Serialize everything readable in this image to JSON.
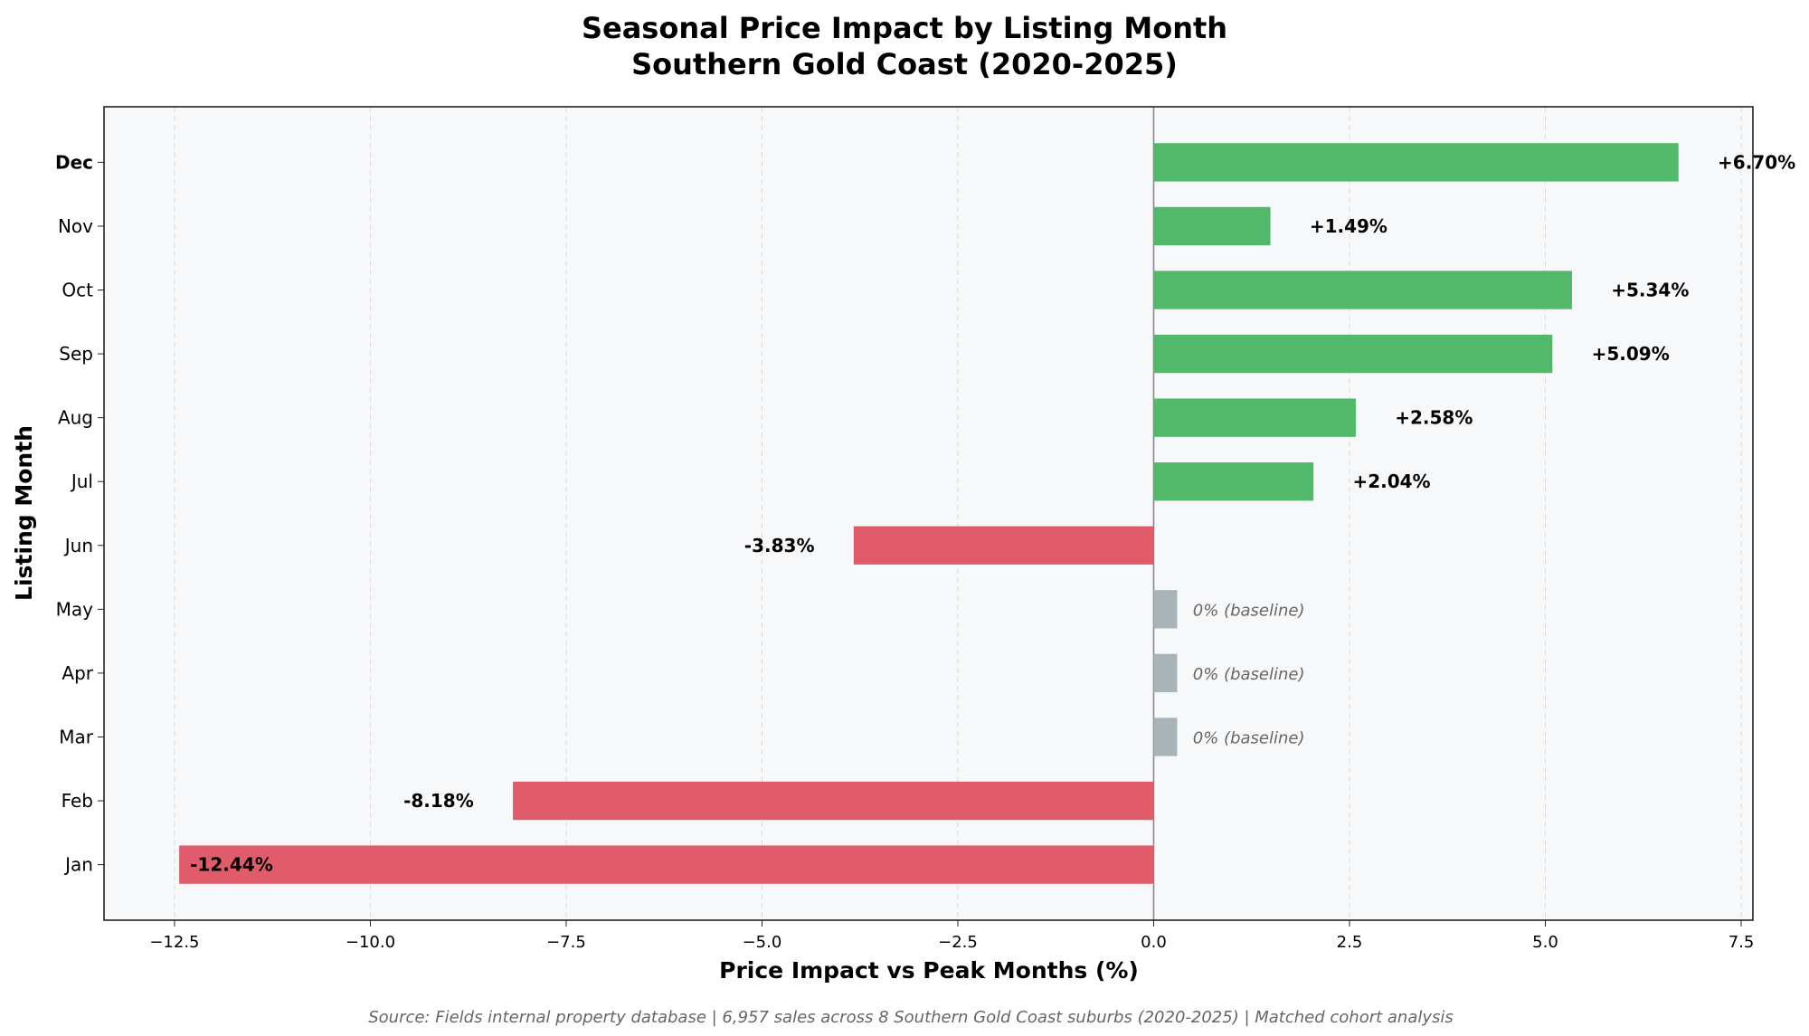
{
  "chart_data": {
    "type": "bar",
    "orientation": "horizontal",
    "title": "Seasonal Price Impact by Listing Month",
    "subtitle": "Southern Gold Coast (2020-2025)",
    "xlabel": "Price Impact vs Peak Months (%)",
    "ylabel": "Listing Month",
    "categories": [
      "Jan",
      "Feb",
      "Mar",
      "Apr",
      "May",
      "Jun",
      "Jul",
      "Aug",
      "Sep",
      "Oct",
      "Nov",
      "Dec"
    ],
    "values": [
      -12.44,
      -8.18,
      0,
      0,
      0,
      -3.83,
      2.04,
      2.58,
      5.09,
      5.34,
      1.49,
      6.7
    ],
    "data_labels": [
      "-12.44%",
      "-8.18%",
      "0% (baseline)",
      "0% (baseline)",
      "0% (baseline)",
      "-3.83%",
      "+2.04%",
      "+2.58%",
      "+5.09%",
      "+5.34%",
      "+1.49%",
      "+6.70%"
    ],
    "highlight_category": "Dec",
    "xlim": [
      -13.4,
      7.65
    ],
    "xticks": [
      -12.5,
      -10.0,
      -7.5,
      -5.0,
      -2.5,
      0.0,
      2.5,
      5.0,
      7.5
    ],
    "xtick_labels": [
      "−12.5",
      "−10.0",
      "−7.5",
      "−5.0",
      "−2.5",
      "0.0",
      "2.5",
      "5.0",
      "7.5"
    ],
    "grid": "x, dashed",
    "colors": {
      "positive": "#52b86a",
      "negative": "#e05c6a",
      "baseline": "#a8b4b8",
      "plot_bg": "#f7f8fa"
    },
    "footnote": "Source: Fields internal property database | 6,957 sales across 8 Southern Gold Coast suburbs (2020-2025) | Matched cohort analysis"
  }
}
